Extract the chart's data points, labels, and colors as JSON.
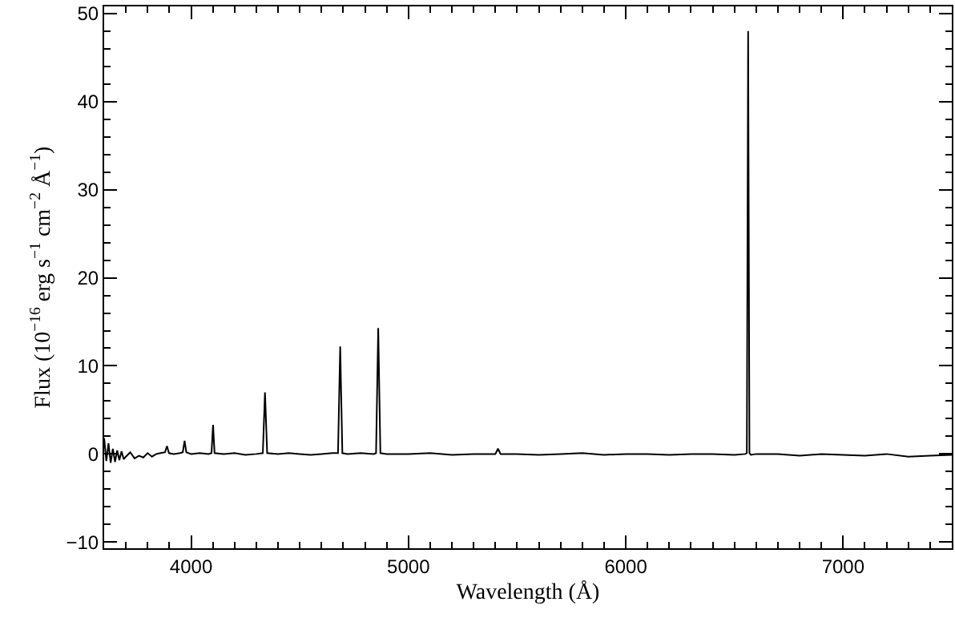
{
  "chart_data": {
    "type": "line",
    "xlabel": "Wavelength (Å)",
    "ylabel": "Flux (10$^{−16}$ erg s$^{−1}$ cm$^{−2}$ Å$^{−1}$)",
    "series": [
      {
        "color": "#000000",
        "x": [
          3600,
          3610,
          3620,
          3630,
          3640,
          3650,
          3660,
          3670,
          3680,
          3690,
          3700,
          3720,
          3740,
          3760,
          3780,
          3800,
          3820,
          3840,
          3860,
          3880,
          3889,
          3898,
          3920,
          3950,
          3962,
          3970,
          3978,
          4000,
          4040,
          4080,
          4094,
          4101,
          4108,
          4150,
          4200,
          4250,
          4300,
          4330,
          4340,
          4350,
          4400,
          4450,
          4500,
          4550,
          4600,
          4650,
          4676,
          4686,
          4696,
          4720,
          4780,
          4840,
          4851,
          4861,
          4871,
          4900,
          5000,
          5100,
          5200,
          5300,
          5400,
          5412,
          5424,
          5500,
          5600,
          5700,
          5800,
          5900,
          6000,
          6100,
          6200,
          6300,
          6400,
          6500,
          6550,
          6557,
          6563,
          6569,
          6576,
          6600,
          6700,
          6800,
          6900,
          7000,
          7100,
          7200,
          7300,
          7400,
          7500
        ],
        "values": [
          1.8,
          -0.8,
          1.2,
          -1.0,
          0.6,
          -0.9,
          0.4,
          -0.7,
          0.3,
          -0.6,
          -0.3,
          0.2,
          -0.5,
          -0.2,
          -0.4,
          0.1,
          -0.3,
          0.0,
          0.1,
          0.2,
          0.9,
          0.1,
          0.0,
          0.1,
          0.2,
          1.5,
          0.2,
          0.0,
          0.1,
          0.0,
          0.1,
          3.3,
          0.1,
          0.0,
          0.1,
          -0.1,
          0.0,
          0.1,
          7.0,
          0.1,
          0.0,
          0.1,
          0.0,
          -0.1,
          0.0,
          0.1,
          0.1,
          12.2,
          0.1,
          0.0,
          0.1,
          0.0,
          0.1,
          14.3,
          0.1,
          0.0,
          0.0,
          0.1,
          -0.1,
          0.0,
          0.0,
          0.6,
          0.0,
          0.0,
          -0.1,
          0.0,
          0.1,
          -0.1,
          0.0,
          0.0,
          -0.1,
          0.0,
          0.0,
          -0.1,
          0.0,
          0.1,
          48.0,
          0.1,
          -0.1,
          0.0,
          0.0,
          -0.2,
          0.0,
          -0.1,
          -0.2,
          0.0,
          -0.3,
          -0.2,
          -0.1
        ]
      }
    ],
    "xlim": [
      3600,
      7500
    ],
    "ylim": [
      -10.7,
      50.8
    ],
    "xticks": [
      4000,
      5000,
      6000,
      7000
    ],
    "yticks": [
      {
        "value": -10,
        "label": "−10"
      },
      0,
      10,
      20,
      30,
      40,
      50
    ],
    "legend": false,
    "marker": "none",
    "line_style": "solid"
  }
}
